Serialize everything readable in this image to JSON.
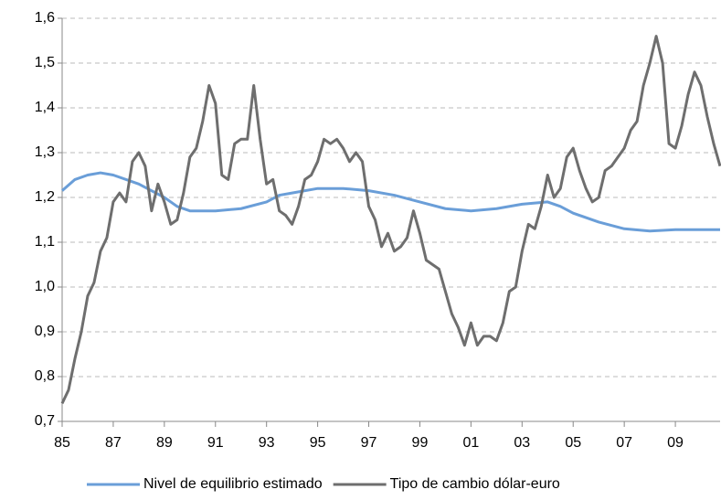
{
  "chart_data": {
    "type": "line",
    "xlim": [
      1985,
      2010.75
    ],
    "ylim": [
      0.7,
      1.6
    ],
    "xticks": [
      {
        "value": 1985,
        "label": "85"
      },
      {
        "value": 1987,
        "label": "87"
      },
      {
        "value": 1989,
        "label": "89"
      },
      {
        "value": 1991,
        "label": "91"
      },
      {
        "value": 1993,
        "label": "93"
      },
      {
        "value": 1995,
        "label": "95"
      },
      {
        "value": 1997,
        "label": "97"
      },
      {
        "value": 1999,
        "label": "99"
      },
      {
        "value": 2001,
        "label": "01"
      },
      {
        "value": 2003,
        "label": "03"
      },
      {
        "value": 2005,
        "label": "05"
      },
      {
        "value": 2007,
        "label": "07"
      },
      {
        "value": 2009,
        "label": "09"
      }
    ],
    "yticks": [
      {
        "value": 0.7,
        "label": "0,7"
      },
      {
        "value": 0.8,
        "label": "0,8"
      },
      {
        "value": 0.9,
        "label": "0,9"
      },
      {
        "value": 1.0,
        "label": "1,0"
      },
      {
        "value": 1.1,
        "label": "1,1"
      },
      {
        "value": 1.2,
        "label": "1,2"
      },
      {
        "value": 1.3,
        "label": "1,3"
      },
      {
        "value": 1.4,
        "label": "1,4"
      },
      {
        "value": 1.5,
        "label": "1,5"
      },
      {
        "value": 1.6,
        "label": "1,6"
      }
    ],
    "grid": true,
    "legend": "bottom",
    "series": [
      {
        "name": "Nivel de equilibrio estimado",
        "color": "#6a9ed8",
        "x": [
          1985,
          1985.5,
          1986,
          1986.5,
          1987,
          1988,
          1989,
          1989.5,
          1990,
          1991,
          1992,
          1993,
          1993.5,
          1994,
          1995,
          1996,
          1997,
          1998,
          1999,
          2000,
          2001,
          2002,
          2003,
          2004,
          2004.5,
          2005,
          2006,
          2007,
          2008,
          2009,
          2010.75
        ],
        "values": [
          1.215,
          1.24,
          1.25,
          1.255,
          1.25,
          1.23,
          1.2,
          1.18,
          1.17,
          1.17,
          1.175,
          1.19,
          1.205,
          1.21,
          1.22,
          1.22,
          1.215,
          1.205,
          1.19,
          1.175,
          1.17,
          1.175,
          1.185,
          1.19,
          1.18,
          1.165,
          1.145,
          1.13,
          1.125,
          1.128,
          1.128
        ]
      },
      {
        "name": "Tipo de cambio dólar-euro",
        "color": "#6e6e6e",
        "x": [
          1985,
          1985.25,
          1985.5,
          1985.75,
          1986,
          1986.25,
          1986.5,
          1986.75,
          1987,
          1987.25,
          1987.5,
          1987.75,
          1988,
          1988.25,
          1988.5,
          1988.75,
          1989,
          1989.25,
          1989.5,
          1989.75,
          1990,
          1990.25,
          1990.5,
          1990.75,
          1991,
          1991.25,
          1991.5,
          1991.75,
          1992,
          1992.25,
          1992.5,
          1992.75,
          1993,
          1993.25,
          1993.5,
          1993.75,
          1994,
          1994.25,
          1994.5,
          1994.75,
          1995,
          1995.25,
          1995.5,
          1995.75,
          1996,
          1996.25,
          1996.5,
          1996.75,
          1997,
          1997.25,
          1997.5,
          1997.75,
          1998,
          1998.25,
          1998.5,
          1998.75,
          1999,
          1999.25,
          1999.5,
          1999.75,
          2000,
          2000.25,
          2000.5,
          2000.75,
          2001,
          2001.25,
          2001.5,
          2001.75,
          2002,
          2002.25,
          2002.5,
          2002.75,
          2003,
          2003.25,
          2003.5,
          2003.75,
          2004,
          2004.25,
          2004.5,
          2004.75,
          2005,
          2005.25,
          2005.5,
          2005.75,
          2006,
          2006.25,
          2006.5,
          2006.75,
          2007,
          2007.25,
          2007.5,
          2007.75,
          2008,
          2008.25,
          2008.5,
          2008.75,
          2009,
          2009.25,
          2009.5,
          2009.75,
          2010,
          2010.25,
          2010.5,
          2010.75
        ],
        "values": [
          0.74,
          0.77,
          0.84,
          0.9,
          0.98,
          1.01,
          1.08,
          1.11,
          1.19,
          1.21,
          1.19,
          1.28,
          1.3,
          1.27,
          1.17,
          1.23,
          1.19,
          1.14,
          1.15,
          1.21,
          1.29,
          1.31,
          1.37,
          1.45,
          1.41,
          1.25,
          1.24,
          1.32,
          1.33,
          1.33,
          1.45,
          1.33,
          1.23,
          1.24,
          1.17,
          1.16,
          1.14,
          1.18,
          1.24,
          1.25,
          1.28,
          1.33,
          1.32,
          1.33,
          1.31,
          1.28,
          1.3,
          1.28,
          1.18,
          1.15,
          1.09,
          1.12,
          1.08,
          1.09,
          1.11,
          1.17,
          1.12,
          1.06,
          1.05,
          1.04,
          0.99,
          0.94,
          0.91,
          0.87,
          0.92,
          0.87,
          0.89,
          0.89,
          0.88,
          0.92,
          0.99,
          1.0,
          1.08,
          1.14,
          1.13,
          1.18,
          1.25,
          1.2,
          1.22,
          1.29,
          1.31,
          1.26,
          1.22,
          1.19,
          1.2,
          1.26,
          1.27,
          1.29,
          1.31,
          1.35,
          1.37,
          1.45,
          1.5,
          1.56,
          1.5,
          1.32,
          1.31,
          1.36,
          1.43,
          1.48,
          1.45,
          1.38,
          1.32,
          1.27
        ]
      }
    ]
  }
}
